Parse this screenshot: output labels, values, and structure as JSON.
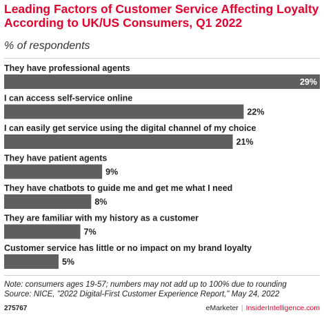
{
  "header": {
    "title": "Leading Factors of Customer Service Affecting Loyalty According to UK/US Consumers, Q1 2022",
    "subtitle": "% of respondents"
  },
  "chart_data": {
    "type": "bar",
    "orientation": "horizontal",
    "title": "Leading Factors of Customer Service Affecting Loyalty According to UK/US Consumers, Q1 2022",
    "ylabel": "% of respondents",
    "categories": [
      "They have professional agents",
      "I can access self-service online",
      "I can easily get service using the digital channel of my choice",
      "They have patient agents",
      "They have chatbots to guide me and get me what I need",
      "They are familiar with my history as a customer",
      "Customer service has little or no impact on my brand loyalty"
    ],
    "values": [
      29,
      22,
      21,
      9,
      8,
      7,
      5
    ],
    "value_labels": [
      "29%",
      "22%",
      "21%",
      "9%",
      "8%",
      "7%",
      "5%"
    ],
    "xlim": [
      0,
      29
    ],
    "grid": false,
    "bar_color": "#5f5f5f"
  },
  "footer": {
    "note": "Note: consumers ages 19-57; numbers may not add up to 100% due to rounding",
    "source": "Source: NICE, \"2022 Digital-First Customer Experience Report,\" May 24, 2022",
    "chart_id": "275767",
    "brand_left": "eMarketer",
    "brand_sep": "|",
    "brand_right": "InsiderIntelligence.com"
  }
}
